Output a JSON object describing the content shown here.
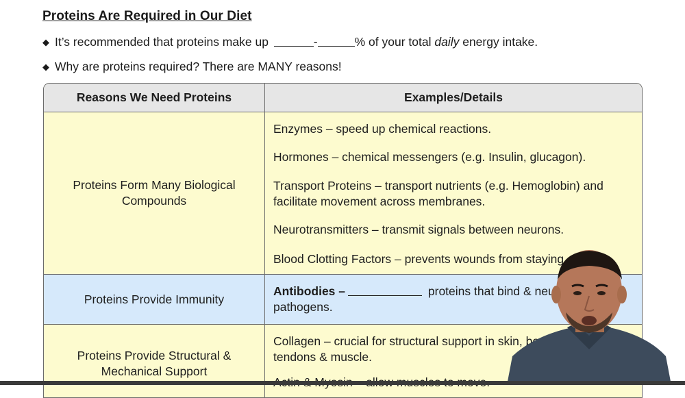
{
  "slide": {
    "title": "Proteins Are Required in Our Diet",
    "bullet1": {
      "before": "It’s recommended that proteins make up ",
      "dash": "-",
      "after_pre": "% of your total ",
      "emphasis": "daily",
      "after": " energy intake."
    },
    "bullet2": "Why are proteins required? There are MANY reasons!"
  },
  "table": {
    "headers": [
      "Reasons We Need Proteins",
      "Examples/Details"
    ],
    "rows": [
      {
        "reason": "Proteins Form Many Biological Compounds",
        "details": [
          "Enzymes – speed up chemical reactions.",
          "Hormones – chemical messengers (e.g. Insulin, glucagon).",
          "Transport Proteins – transport nutrients (e.g. Hemoglobin) and facilitate movement across membranes.",
          "Neurotransmitters – transmit signals between neurons.",
          "Blood Clotting Factors – prevents wounds from staying op"
        ]
      },
      {
        "reason": "Proteins Provide Immunity",
        "details_bold": "Antibodies –",
        "details_rest": " proteins that bind & neutral",
        "details_line2": "pathogens."
      },
      {
        "reason": "Proteins Provide Structural & Mechanical Support",
        "details": [
          "Collagen – crucial for structural support in skin, bone",
          "tendons & muscle.",
          "Actin & Myosin – allow muscles to move."
        ]
      }
    ]
  },
  "colors": {
    "header_bg": "#e6e6e6",
    "yellow_row": "#fdfbcf",
    "blue_row": "#d6e9fb",
    "border": "#6b6b6b"
  }
}
